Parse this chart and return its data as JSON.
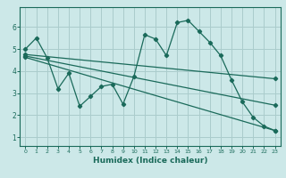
{
  "background_color": "#cce8e8",
  "grid_color": "#aacccc",
  "line_color": "#1a6a5a",
  "xlabel": "Humidex (Indice chaleur)",
  "xlim": [
    -0.5,
    23.5
  ],
  "ylim": [
    0.6,
    6.9
  ],
  "yticks": [
    1,
    2,
    3,
    4,
    5,
    6
  ],
  "xticks": [
    0,
    1,
    2,
    3,
    4,
    5,
    6,
    7,
    8,
    9,
    10,
    11,
    12,
    13,
    14,
    15,
    16,
    17,
    18,
    19,
    20,
    21,
    22,
    23
  ],
  "series1_x": [
    0,
    1,
    2,
    3,
    4,
    5,
    6,
    7,
    8,
    9,
    10,
    11,
    12,
    13,
    14,
    15,
    16,
    17,
    18,
    19,
    20,
    21,
    22,
    23
  ],
  "series1_y": [
    5.0,
    5.5,
    4.6,
    3.2,
    3.9,
    2.4,
    2.85,
    3.3,
    3.4,
    2.5,
    3.75,
    5.65,
    5.45,
    4.7,
    6.2,
    6.3,
    5.8,
    5.3,
    4.7,
    3.6,
    2.6,
    1.9,
    1.5,
    1.3
  ],
  "series2_x": [
    0,
    23
  ],
  "series2_y": [
    4.75,
    3.65
  ],
  "series3_x": [
    0,
    23
  ],
  "series3_y": [
    4.62,
    1.3
  ],
  "series4_x": [
    0,
    23
  ],
  "series4_y": [
    4.68,
    2.45
  ]
}
